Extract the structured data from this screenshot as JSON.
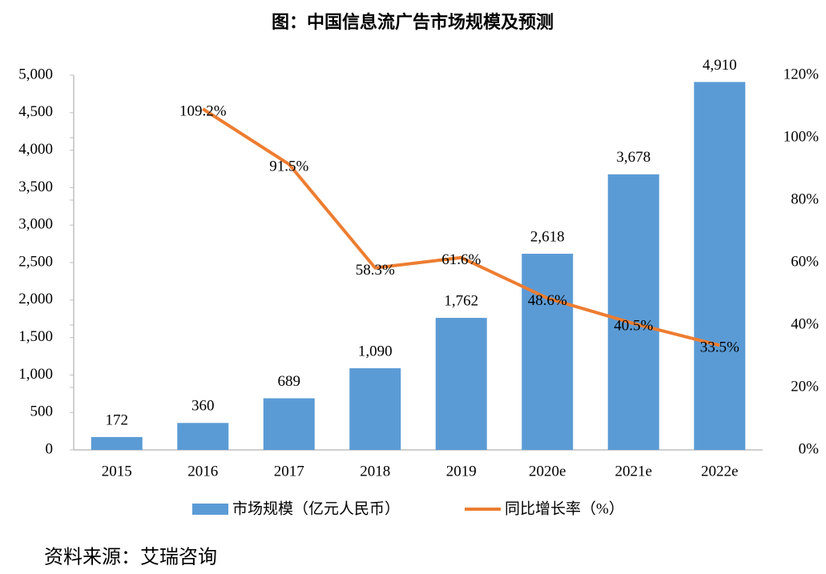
{
  "chart_data": {
    "type": "bar",
    "title": "图：中国信息流广告市场规模及预测",
    "categories": [
      "2015",
      "2016",
      "2017",
      "2018",
      "2019",
      "2020e",
      "2021e",
      "2022e"
    ],
    "series": [
      {
        "name": "市场规模（亿元人民币）",
        "type": "bar",
        "color": "#5b9bd5",
        "values": [
          172,
          360,
          689,
          1090,
          1762,
          2618,
          3678,
          4910
        ],
        "value_labels": [
          "172",
          "360",
          "689",
          "1,090",
          "1,762",
          "2,618",
          "3,678",
          "4,910"
        ]
      },
      {
        "name": "同比增长率（%）",
        "type": "line",
        "axis": "y2",
        "color": "#ed7d31",
        "values": [
          null,
          109.2,
          91.5,
          58.3,
          61.6,
          48.6,
          40.5,
          33.5
        ],
        "value_labels": [
          null,
          "109.2%",
          "91.5%",
          "58.3%",
          "61.6%",
          "48.6%",
          "40.5%",
          "33.5%"
        ]
      }
    ],
    "ylim": [
      0,
      5000
    ],
    "yticks": [
      0,
      500,
      {
        "value": 1000,
        "label": "1,000"
      },
      {
        "value": 1500,
        "label": "1,500"
      },
      {
        "value": 2000,
        "label": "2,000"
      },
      {
        "value": 2500,
        "label": "2,500"
      },
      {
        "value": 3000,
        "label": "3,000"
      },
      {
        "value": 3500,
        "label": "3,500"
      },
      {
        "value": 4000,
        "label": "4,000"
      },
      {
        "value": 4500,
        "label": "4,500"
      },
      {
        "value": 5000,
        "label": "5,000"
      }
    ],
    "y2lim": [
      0,
      120
    ],
    "y2ticks": [
      {
        "value": 0,
        "label": "0%"
      },
      {
        "value": 20,
        "label": "20%"
      },
      {
        "value": 40,
        "label": "40%"
      },
      {
        "value": 60,
        "label": "60%"
      },
      {
        "value": 80,
        "label": "80%"
      },
      {
        "value": 100,
        "label": "100%"
      },
      {
        "value": 120,
        "label": "120%"
      }
    ],
    "grid": false,
    "legend": "bottom",
    "source": "资料来源：艾瑞咨询"
  }
}
